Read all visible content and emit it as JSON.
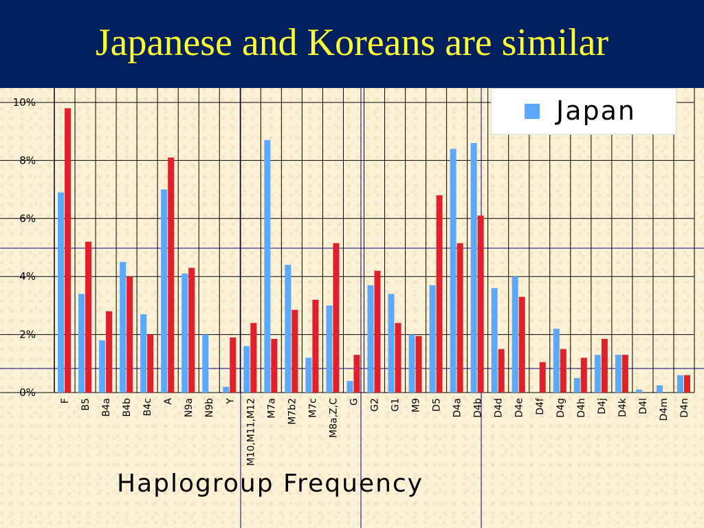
{
  "slide": {
    "title": "Japanese and Koreans are similar"
  },
  "chart_data": {
    "type": "bar",
    "xlabel": "Haplogroup Frequency",
    "ylabel": "",
    "ylim": [
      0,
      10
    ],
    "yticks": [
      "0%",
      "2%",
      "4%",
      "6%",
      "8%",
      "10%"
    ],
    "grid": true,
    "legend": {
      "position": "top-right",
      "entries": [
        "Japan"
      ]
    },
    "categories": [
      "F",
      "B5",
      "B4a",
      "B4b",
      "B4c",
      "A",
      "N9a",
      "N9b",
      "Y",
      "M10,M11,M12",
      "M7a",
      "M7b2",
      "M7c",
      "M8a,Z,C",
      "G",
      "G2",
      "G1",
      "M9",
      "D5",
      "D4a",
      "D4b",
      "D4d",
      "D4e",
      "D4f",
      "D4g",
      "D4h",
      "D4j",
      "D4k",
      "D4l",
      "D4m",
      "D4n"
    ],
    "series": [
      {
        "name": "Japan",
        "color": "#5aa9ff",
        "values": [
          6.9,
          3.4,
          1.8,
          4.5,
          2.7,
          7.0,
          4.1,
          2.0,
          0.2,
          1.6,
          8.7,
          4.4,
          1.2,
          3.0,
          0.4,
          3.7,
          3.4,
          2.0,
          3.7,
          8.4,
          8.6,
          3.6,
          4.0,
          0.0,
          2.2,
          0.5,
          1.3,
          1.3,
          0.1,
          0.25,
          0.6
        ]
      },
      {
        "name": "",
        "color": "#e0202a",
        "values": [
          9.8,
          5.2,
          2.8,
          4.0,
          2.0,
          8.1,
          4.3,
          0.0,
          1.9,
          2.4,
          1.85,
          2.85,
          3.2,
          5.15,
          1.3,
          4.2,
          2.4,
          1.95,
          6.8,
          5.15,
          6.1,
          1.5,
          3.3,
          1.05,
          1.5,
          1.2,
          1.85,
          1.3,
          0.0,
          0.0,
          0.6
        ]
      }
    ]
  },
  "colors": {
    "title_bar": "#02205d",
    "title_text": "#ffff33",
    "background": "#fbf1d6"
  }
}
